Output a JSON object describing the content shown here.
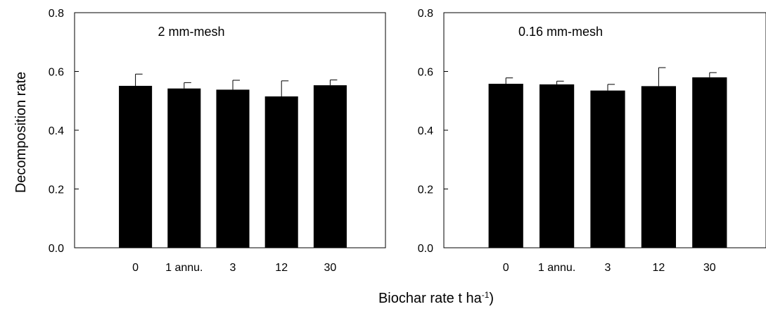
{
  "figure": {
    "ylabel": "Decomposition rate",
    "xlabel_main": "Biochar rate t ha",
    "xlabel_sup": "-1",
    "xlabel_tail": ")"
  },
  "chart_data": [
    {
      "type": "bar",
      "title": "2 mm-mesh",
      "categories": [
        "0",
        "1 annu.",
        "3",
        "12",
        "30"
      ],
      "values": [
        0.551,
        0.542,
        0.538,
        0.515,
        0.553
      ],
      "errors": [
        0.04,
        0.02,
        0.032,
        0.053,
        0.018
      ],
      "ylim": [
        0,
        0.8
      ],
      "yticks": [
        "0.0",
        "0.2",
        "0.4",
        "0.6",
        "0.8"
      ],
      "ylabel": "Decomposition rate",
      "xlabel": "",
      "bar_color": "#000000",
      "grid": false
    },
    {
      "type": "bar",
      "title": "0.16 mm-mesh",
      "categories": [
        "0",
        "1 annu.",
        "3",
        "12",
        "30"
      ],
      "values": [
        0.558,
        0.556,
        0.535,
        0.55,
        0.58
      ],
      "errors": [
        0.02,
        0.011,
        0.021,
        0.063,
        0.016
      ],
      "ylim": [
        0,
        0.8
      ],
      "yticks": [
        "0.0",
        "0.2",
        "0.4",
        "0.6",
        "0.8"
      ],
      "ylabel": "",
      "xlabel": "",
      "bar_color": "#000000",
      "grid": false
    }
  ]
}
